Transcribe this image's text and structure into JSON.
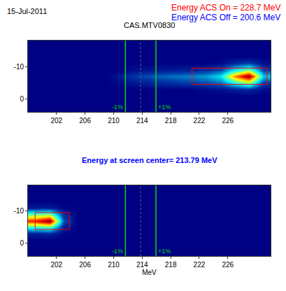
{
  "header": {
    "date": "15-Jul-2011",
    "lines": [
      {
        "text": "Energy ACS On = 228.7 MeV",
        "color": "#ff0000"
      },
      {
        "text": "Energy ACS Off = 200.6 MeV",
        "color": "#0000ff"
      }
    ]
  },
  "chart_data": [
    {
      "type": "heatmap",
      "title": {
        "text": "CAS.MTV0830",
        "color": "#000000"
      },
      "x": [
        199,
        201,
        203,
        205,
        207,
        209,
        211,
        213,
        215,
        217,
        219,
        221,
        223,
        225,
        227,
        229,
        231
      ],
      "y": [
        -17,
        -15,
        -13,
        -11,
        -9,
        -7,
        -5,
        -3,
        -1,
        1,
        3
      ],
      "z": [
        [
          0,
          0,
          0,
          0,
          0,
          0,
          0,
          0,
          0,
          0,
          0,
          0,
          0,
          0,
          0,
          0,
          0
        ],
        [
          0,
          0,
          0,
          0,
          0,
          0,
          0,
          0,
          0,
          0,
          0,
          0,
          0,
          0,
          0,
          0,
          0
        ],
        [
          0,
          0,
          0,
          0,
          0,
          0,
          0,
          0,
          0,
          0,
          0,
          0,
          0,
          0,
          0,
          0,
          0
        ],
        [
          0,
          0,
          0,
          0,
          0,
          0,
          0,
          0,
          0,
          0,
          0,
          0,
          0,
          2,
          8,
          12,
          3
        ],
        [
          0,
          0,
          0,
          0,
          0,
          0,
          0,
          3,
          4,
          5,
          6,
          7,
          9,
          14,
          35,
          50,
          12
        ],
        [
          0,
          0,
          0,
          0,
          0,
          0,
          6,
          12,
          15,
          18,
          20,
          22,
          25,
          35,
          75,
          100,
          30
        ],
        [
          0,
          0,
          0,
          0,
          0,
          0,
          2,
          5,
          7,
          9,
          11,
          13,
          15,
          20,
          40,
          55,
          12
        ],
        [
          0,
          0,
          0,
          0,
          0,
          0,
          0,
          0,
          0,
          0,
          0,
          0,
          2,
          3,
          6,
          8,
          2
        ],
        [
          0,
          0,
          0,
          0,
          0,
          0,
          0,
          0,
          0,
          0,
          0,
          0,
          0,
          0,
          0,
          0,
          0
        ],
        [
          0,
          0,
          0,
          0,
          0,
          0,
          0,
          0,
          0,
          0,
          0,
          0,
          0,
          0,
          0,
          0,
          0
        ],
        [
          0,
          0,
          0,
          0,
          0,
          0,
          0,
          0,
          0,
          0,
          0,
          0,
          0,
          0,
          0,
          0,
          0
        ]
      ],
      "zlim": [
        0,
        100
      ],
      "xlim": [
        198,
        232
      ],
      "ylim": [
        4,
        -18
      ],
      "xticks": [
        202,
        206,
        210,
        214,
        218,
        222,
        226
      ],
      "yticks": [
        -10,
        0
      ],
      "grid": true,
      "lines": [
        {
          "x": 211.65,
          "label": "-1%",
          "color": "#00dd00",
          "line_style": "solid"
        },
        {
          "x": 213.79,
          "color": "#666666",
          "line_style": "dotted"
        },
        {
          "x": 215.93,
          "label": "+1%",
          "color": "#00dd00",
          "line_style": "solid"
        }
      ],
      "box": {
        "x": [
          221,
          231.5
        ],
        "y": [
          -9.5,
          -4.5
        ],
        "color": "#ff0000"
      }
    },
    {
      "type": "heatmap",
      "title": {
        "text": "Energy at screen center= 213.79 MeV",
        "color": "#0000ff"
      },
      "xlabel": "MeV",
      "x": [
        199,
        201,
        203,
        205,
        207,
        209,
        211,
        213,
        215,
        217,
        219,
        221,
        223,
        225,
        227,
        229,
        231
      ],
      "y": [
        -17,
        -15,
        -13,
        -11,
        -9,
        -7,
        -5,
        -3,
        -1,
        1,
        3
      ],
      "z": [
        [
          0,
          0,
          0,
          0,
          0,
          0,
          0,
          0,
          0,
          0,
          0,
          0,
          0,
          0,
          0,
          0,
          0
        ],
        [
          0,
          0,
          0,
          0,
          0,
          0,
          0,
          0,
          0,
          0,
          0,
          0,
          0,
          0,
          0,
          0,
          0
        ],
        [
          0,
          0,
          0,
          0,
          0,
          0,
          0,
          0,
          0,
          0,
          0,
          0,
          0,
          0,
          0,
          0,
          0
        ],
        [
          5,
          6,
          1,
          0,
          0,
          0,
          0,
          0,
          0,
          0,
          0,
          0,
          0,
          0,
          0,
          0,
          0
        ],
        [
          45,
          50,
          8,
          0,
          0,
          0,
          0,
          0,
          0,
          0,
          0,
          0,
          0,
          0,
          0,
          0,
          0
        ],
        [
          85,
          100,
          15,
          0,
          0,
          0,
          0,
          0,
          0,
          0,
          0,
          0,
          0,
          0,
          0,
          0,
          0
        ],
        [
          40,
          45,
          6,
          0,
          0,
          0,
          0,
          0,
          0,
          0,
          0,
          0,
          0,
          0,
          0,
          0,
          0
        ],
        [
          6,
          8,
          1,
          0,
          0,
          0,
          0,
          0,
          0,
          0,
          0,
          0,
          0,
          0,
          0,
          0,
          0
        ],
        [
          0,
          0,
          0,
          0,
          0,
          0,
          0,
          0,
          0,
          0,
          0,
          0,
          0,
          0,
          0,
          0,
          0
        ],
        [
          0,
          0,
          0,
          0,
          0,
          0,
          0,
          0,
          0,
          0,
          0,
          0,
          0,
          0,
          0,
          0,
          0
        ],
        [
          0,
          0,
          0,
          0,
          0,
          0,
          0,
          0,
          0,
          0,
          0,
          0,
          0,
          0,
          0,
          0,
          0
        ]
      ],
      "zlim": [
        0,
        100
      ],
      "xlim": [
        198,
        232
      ],
      "ylim": [
        4,
        -18
      ],
      "xticks": [
        202,
        206,
        210,
        214,
        218,
        222,
        226
      ],
      "yticks": [
        -10,
        0
      ],
      "grid": true,
      "lines": [
        {
          "x": 211.65,
          "label": "-1%",
          "color": "#00dd00",
          "line_style": "solid"
        },
        {
          "x": 213.79,
          "color": "#666666",
          "line_style": "dotted"
        },
        {
          "x": 215.93,
          "label": "+1%",
          "color": "#00dd00",
          "line_style": "solid"
        }
      ],
      "box": {
        "x": [
          199,
          203.8
        ],
        "y": [
          -9.5,
          -4.3
        ],
        "color": "#ff0000"
      }
    }
  ]
}
